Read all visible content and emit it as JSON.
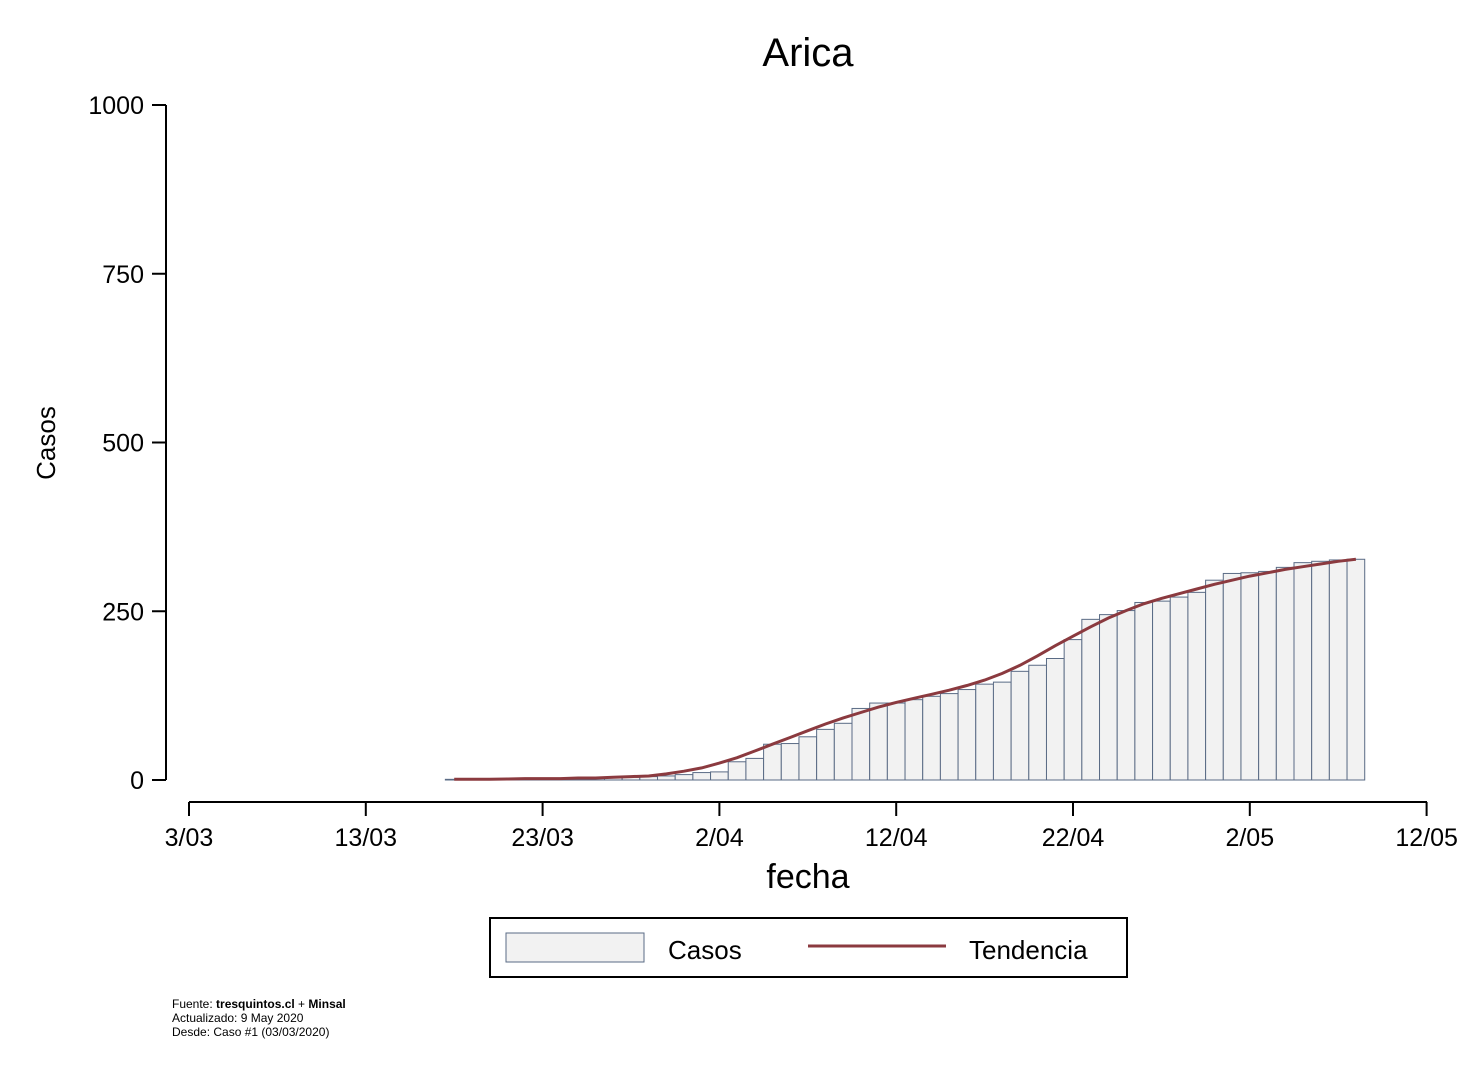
{
  "chart_data": {
    "type": "bar",
    "title": "Arica",
    "xlabel": "fecha",
    "ylabel": "Casos",
    "ylim": [
      0,
      1000
    ],
    "yticks": [
      "0",
      "250",
      "500",
      "750",
      "1000"
    ],
    "xticks": [
      "3/03",
      "13/03",
      "23/03",
      "2/04",
      "12/04",
      "22/04",
      "2/05",
      "12/05"
    ],
    "grid": false,
    "legend_position": "bottom",
    "colors": {
      "bar_fill": "#f2f2f2",
      "bar_edge": "#5a6b85",
      "trend": "#8b3a3f"
    },
    "x": [
      "2020-03-18",
      "2020-03-19",
      "2020-03-20",
      "2020-03-21",
      "2020-03-22",
      "2020-03-23",
      "2020-03-24",
      "2020-03-25",
      "2020-03-26",
      "2020-03-27",
      "2020-03-28",
      "2020-03-29",
      "2020-03-30",
      "2020-03-31",
      "2020-04-01",
      "2020-04-02",
      "2020-04-03",
      "2020-04-04",
      "2020-04-05",
      "2020-04-06",
      "2020-04-07",
      "2020-04-08",
      "2020-04-09",
      "2020-04-10",
      "2020-04-11",
      "2020-04-12",
      "2020-04-13",
      "2020-04-14",
      "2020-04-15",
      "2020-04-16",
      "2020-04-17",
      "2020-04-18",
      "2020-04-19",
      "2020-04-20",
      "2020-04-21",
      "2020-04-22",
      "2020-04-23",
      "2020-04-24",
      "2020-04-25",
      "2020-04-26",
      "2020-04-27",
      "2020-04-28",
      "2020-04-29",
      "2020-04-30",
      "2020-05-01",
      "2020-05-02",
      "2020-05-03",
      "2020-05-04",
      "2020-05-05",
      "2020-05-06",
      "2020-05-07",
      "2020-05-08"
    ],
    "series": [
      {
        "name": "Casos",
        "values": [
          1,
          1,
          1,
          1,
          1,
          1,
          1,
          2,
          3,
          3,
          4,
          5,
          6,
          8,
          11,
          12,
          27,
          32,
          53,
          54,
          64,
          75,
          84,
          106,
          114,
          114,
          119,
          124,
          128,
          134,
          142,
          145,
          161,
          170,
          180,
          208,
          238,
          245,
          251,
          263,
          265,
          271,
          278,
          296,
          306,
          307,
          309,
          315,
          322,
          324,
          326,
          327
        ]
      },
      {
        "name": "Tendencia",
        "values": [
          1,
          1,
          1,
          1.5,
          2,
          2,
          2,
          3,
          3,
          4,
          5,
          6,
          9,
          13,
          18,
          25,
          33,
          43,
          53,
          63,
          73,
          83,
          92,
          100,
          108,
          115,
          121,
          127,
          133,
          140,
          148,
          158,
          170,
          184,
          199,
          213,
          227,
          240,
          251,
          261,
          269,
          276,
          283,
          290,
          296,
          302,
          307,
          312,
          316,
          320,
          324,
          327
        ]
      }
    ]
  },
  "footnote": {
    "source_label": "Fuente: ",
    "source_site": "tresquintos.cl",
    "source_plus": " + ",
    "source_org": "Minsal",
    "updated": "Actualizado: 9 May 2020",
    "since": "Desde: Caso #1  (03/03/2020)"
  }
}
